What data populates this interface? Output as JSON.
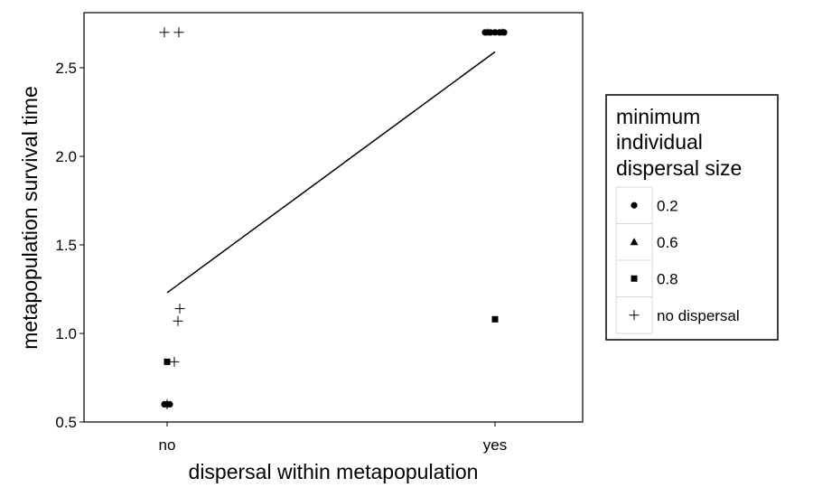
{
  "chart_data": {
    "type": "scatter",
    "xlabel": "dispersal within metapopulation",
    "ylabel": "metapopulation survival time",
    "categories": [
      "no",
      "yes"
    ],
    "ylim": [
      0.5,
      2.75
    ],
    "yticks": [
      0.5,
      1.0,
      1.5,
      2.0,
      2.5
    ],
    "yticklabels": [
      "0.5",
      "1.0",
      "1.5",
      "2.0",
      "2.5"
    ],
    "grid": false,
    "legend": {
      "title_lines": [
        "minimum",
        "individual",
        "dispersal size"
      ],
      "placement": "right",
      "entries": [
        {
          "label": "0.2",
          "shape": "circle"
        },
        {
          "label": "0.6",
          "shape": "triangle"
        },
        {
          "label": "0.8",
          "shape": "square"
        },
        {
          "label": "no dispersal",
          "shape": "plus"
        }
      ]
    },
    "series": [
      {
        "name": "0.2",
        "shape": "circle",
        "points": [
          {
            "x": "no",
            "y": 0.6
          },
          {
            "x": "no",
            "y": 0.6
          },
          {
            "x": "no",
            "y": 0.6
          },
          {
            "x": "yes",
            "y": 2.7
          },
          {
            "x": "yes",
            "y": 2.7
          },
          {
            "x": "yes",
            "y": 2.7
          },
          {
            "x": "yes",
            "y": 2.7
          },
          {
            "x": "yes",
            "y": 2.7
          }
        ]
      },
      {
        "name": "0.6",
        "shape": "triangle",
        "points": [
          {
            "x": "yes",
            "y": 2.7
          },
          {
            "x": "yes",
            "y": 2.7
          }
        ]
      },
      {
        "name": "0.8",
        "shape": "square",
        "points": [
          {
            "x": "no",
            "y": 0.84
          },
          {
            "x": "yes",
            "y": 1.08
          }
        ]
      },
      {
        "name": "no dispersal",
        "shape": "plus",
        "points": [
          {
            "x": "no",
            "y": 2.7
          },
          {
            "x": "no",
            "y": 2.7
          },
          {
            "x": "no",
            "y": 1.14
          },
          {
            "x": "no",
            "y": 1.07
          },
          {
            "x": "no",
            "y": 0.84
          },
          {
            "x": "no",
            "y": 0.6
          }
        ]
      }
    ],
    "trend_line": {
      "from": {
        "x": "no",
        "y": 1.23
      },
      "to": {
        "x": "yes",
        "y": 2.59
      }
    }
  }
}
